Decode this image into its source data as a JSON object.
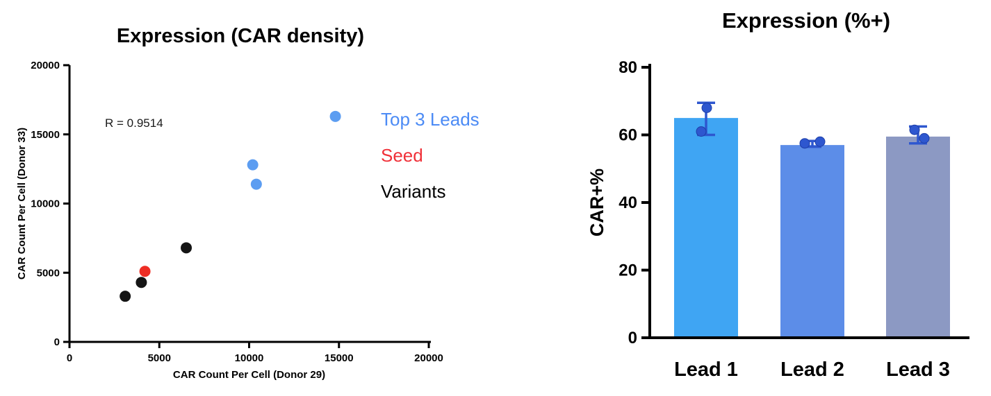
{
  "chart_data": [
    {
      "type": "scatter",
      "title": "Expression (CAR density)",
      "annotation": "R = 0.9514",
      "xlabel": "CAR Count Per Cell (Donor 29)",
      "ylabel": "CAR Count Per Cell (Donor 33)",
      "xlim": [
        0,
        20000
      ],
      "ylim": [
        0,
        20000
      ],
      "xticks": [
        0,
        5000,
        10000,
        15000,
        20000
      ],
      "yticks": [
        0,
        5000,
        10000,
        15000,
        20000
      ],
      "grid": false,
      "legend_position": "right-outside",
      "series": [
        {
          "name": "Top 3 Leads",
          "color": "#5C9DF1",
          "points": [
            [
              14800,
              16300
            ],
            [
              10200,
              12800
            ],
            [
              10400,
              11400
            ]
          ]
        },
        {
          "name": "Seed",
          "color": "#EE2D24",
          "points": [
            [
              4200,
              5100
            ]
          ]
        },
        {
          "name": "Variants",
          "color": "#151515",
          "points": [
            [
              3100,
              3300
            ],
            [
              4000,
              4300
            ],
            [
              6500,
              6800
            ]
          ]
        }
      ],
      "legend_text_colors": [
        "#4C8BF5",
        "#F03038",
        "#000000"
      ]
    },
    {
      "type": "bar",
      "title": "Expression (%+)",
      "xlabel": "",
      "ylabel": "CAR+%",
      "ylim": [
        0,
        80
      ],
      "yticks": [
        0,
        20,
        40,
        60,
        80
      ],
      "grid": false,
      "categories": [
        "Lead 1",
        "Lead 2",
        "Lead 3"
      ],
      "values": [
        65,
        57,
        59.5
      ],
      "bar_colors": [
        "#3FA5F3",
        "#5C8DE8",
        "#8C99C3"
      ],
      "error_bars": [
        {
          "low": 60,
          "high": 69.5
        },
        {
          "low": 56.5,
          "high": 58.2
        },
        {
          "low": 57.5,
          "high": 62.5
        }
      ],
      "replicate_dots": [
        [
          68,
          61
        ],
        [
          57.5,
          58
        ],
        [
          61.5,
          59
        ]
      ],
      "dot_color": "#2E57CF"
    }
  ]
}
